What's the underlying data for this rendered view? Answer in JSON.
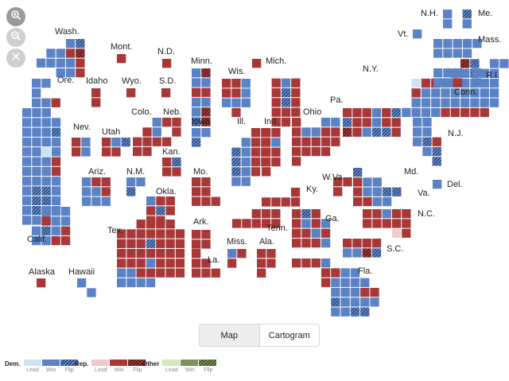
{
  "zoom_controls": {
    "zoom_in_icon": "zoom-in-icon",
    "zoom_out_icon": "zoom-out-icon",
    "reset_icon": "close-icon"
  },
  "colors": {
    "dem_lead": "#cfe2f5",
    "dem_win": "#5b82c4",
    "dem_flip": "hatched-blue",
    "rep_lead": "#efcaca",
    "rep_win": "#a83838",
    "rep_flip": "hatched-red",
    "other_lead": "#d6e6bd",
    "other_win": "#7d9454",
    "other_flip": "hatched-green"
  },
  "state_labels": [
    "Wash.",
    "Mont.",
    "N.D.",
    "Minn.",
    "Wis.",
    "Mich.",
    "N.Y.",
    "N.H.",
    "Me.",
    "Vt.",
    "Mass.",
    "R.I.",
    "Conn.",
    "Ore.",
    "Idaho",
    "Wyo.",
    "S.D.",
    "Pa.",
    "Colo.",
    "Neb.",
    "Iowa",
    "Ill.",
    "Ind.",
    "Ohio",
    "N.J.",
    "Nev.",
    "Utah",
    "Kan.",
    "Ariz.",
    "N.M.",
    "Mo.",
    "W.Va.",
    "Md.",
    "Okla.",
    "Ky.",
    "Va.",
    "Del.",
    "Calif.",
    "Tex.",
    "Ark.",
    "Tenn.",
    "N.C.",
    "Ga.",
    "S.C.",
    "Miss.",
    "Ala.",
    "La.",
    "Alaska",
    "Hawaii",
    "Fla."
  ],
  "view_toggle": {
    "map_label": "Map",
    "cartogram_label": "Cartogram",
    "selected": "Map"
  },
  "legend": {
    "dem_title": "Dem.",
    "rep_title": "Rep.",
    "other_title": "Other",
    "sub_labels": [
      "Lead",
      "Win",
      "Flip"
    ]
  }
}
